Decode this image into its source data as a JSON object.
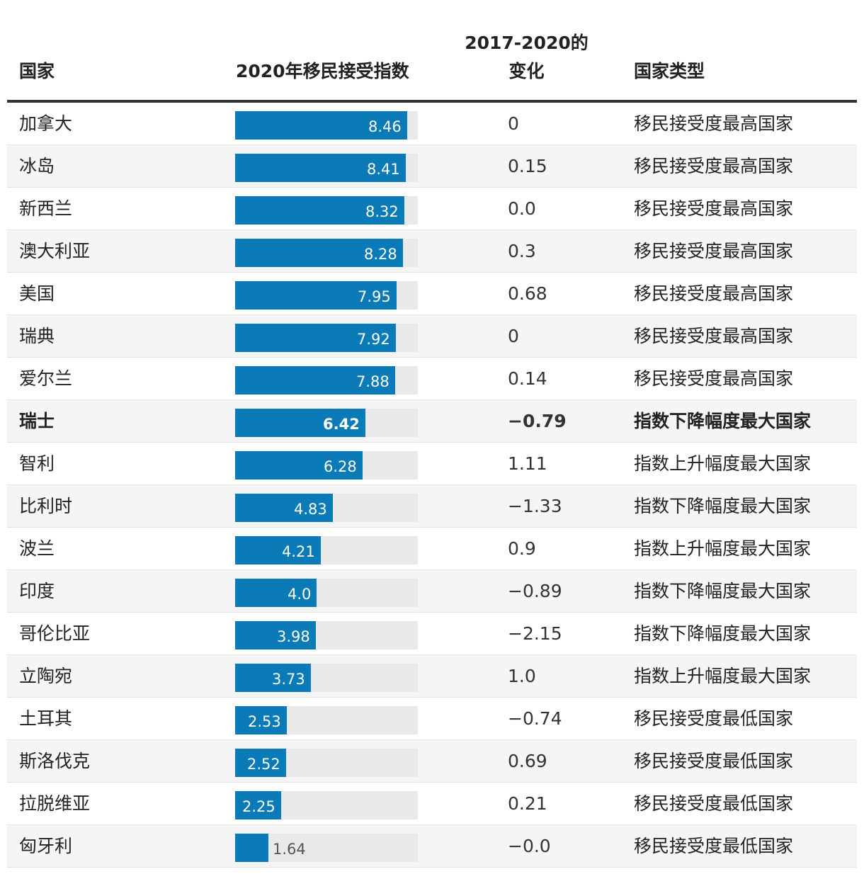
{
  "chart_data": {
    "type": "table",
    "columns": [
      "国家",
      "2020年移民接受指数",
      "2017-2020的变化",
      "国家类型"
    ],
    "xlim": [
      0,
      9
    ],
    "highlight_row": "瑞士",
    "rows": [
      {
        "country": "加拿大",
        "index": 8.46,
        "index_label": "8.46",
        "change": "0",
        "type": "移民接受度最高国家"
      },
      {
        "country": "冰岛",
        "index": 8.41,
        "index_label": "8.41",
        "change": "0.15",
        "type": "移民接受度最高国家"
      },
      {
        "country": "新西兰",
        "index": 8.32,
        "index_label": "8.32",
        "change": "0.0",
        "type": "移民接受度最高国家"
      },
      {
        "country": "澳大利亚",
        "index": 8.28,
        "index_label": "8.28",
        "change": "0.3",
        "type": "移民接受度最高国家"
      },
      {
        "country": "美国",
        "index": 7.95,
        "index_label": "7.95",
        "change": "0.68",
        "type": "移民接受度最高国家"
      },
      {
        "country": "瑞典",
        "index": 7.92,
        "index_label": "7.92",
        "change": "0",
        "type": "移民接受度最高国家"
      },
      {
        "country": "爱尔兰",
        "index": 7.88,
        "index_label": "7.88",
        "change": "0.14",
        "type": "移民接受度最高国家"
      },
      {
        "country": "瑞士",
        "index": 6.42,
        "index_label": "6.42",
        "change": "−0.79",
        "type": "指数下降幅度最大国家"
      },
      {
        "country": "智利",
        "index": 6.28,
        "index_label": "6.28",
        "change": "1.11",
        "type": "指数上升幅度最大国家"
      },
      {
        "country": "比利时",
        "index": 4.83,
        "index_label": "4.83",
        "change": "−1.33",
        "type": "指数下降幅度最大国家"
      },
      {
        "country": "波兰",
        "index": 4.21,
        "index_label": "4.21",
        "change": "0.9",
        "type": "指数上升幅度最大国家"
      },
      {
        "country": "印度",
        "index": 4.0,
        "index_label": "4.0",
        "change": "−0.89",
        "type": "指数下降幅度最大国家"
      },
      {
        "country": "哥伦比亚",
        "index": 3.98,
        "index_label": "3.98",
        "change": "−2.15",
        "type": "指数下降幅度最大国家"
      },
      {
        "country": "立陶宛",
        "index": 3.73,
        "index_label": "3.73",
        "change": "1.0",
        "type": "指数上升幅度最大国家"
      },
      {
        "country": "土耳其",
        "index": 2.53,
        "index_label": "2.53",
        "change": "−0.74",
        "type": "移民接受度最低国家"
      },
      {
        "country": "斯洛伐克",
        "index": 2.52,
        "index_label": "2.52",
        "change": "0.69",
        "type": "移民接受度最低国家"
      },
      {
        "country": "拉脱维亚",
        "index": 2.25,
        "index_label": "2.25",
        "change": "0.21",
        "type": "移民接受度最低国家"
      },
      {
        "country": "匈牙利",
        "index": 1.64,
        "index_label": "1.64",
        "change": "−0.0",
        "type": "移民接受度最低国家"
      }
    ]
  },
  "colors": {
    "bar": "#0a7bb7",
    "track": "#e9e9e9"
  }
}
